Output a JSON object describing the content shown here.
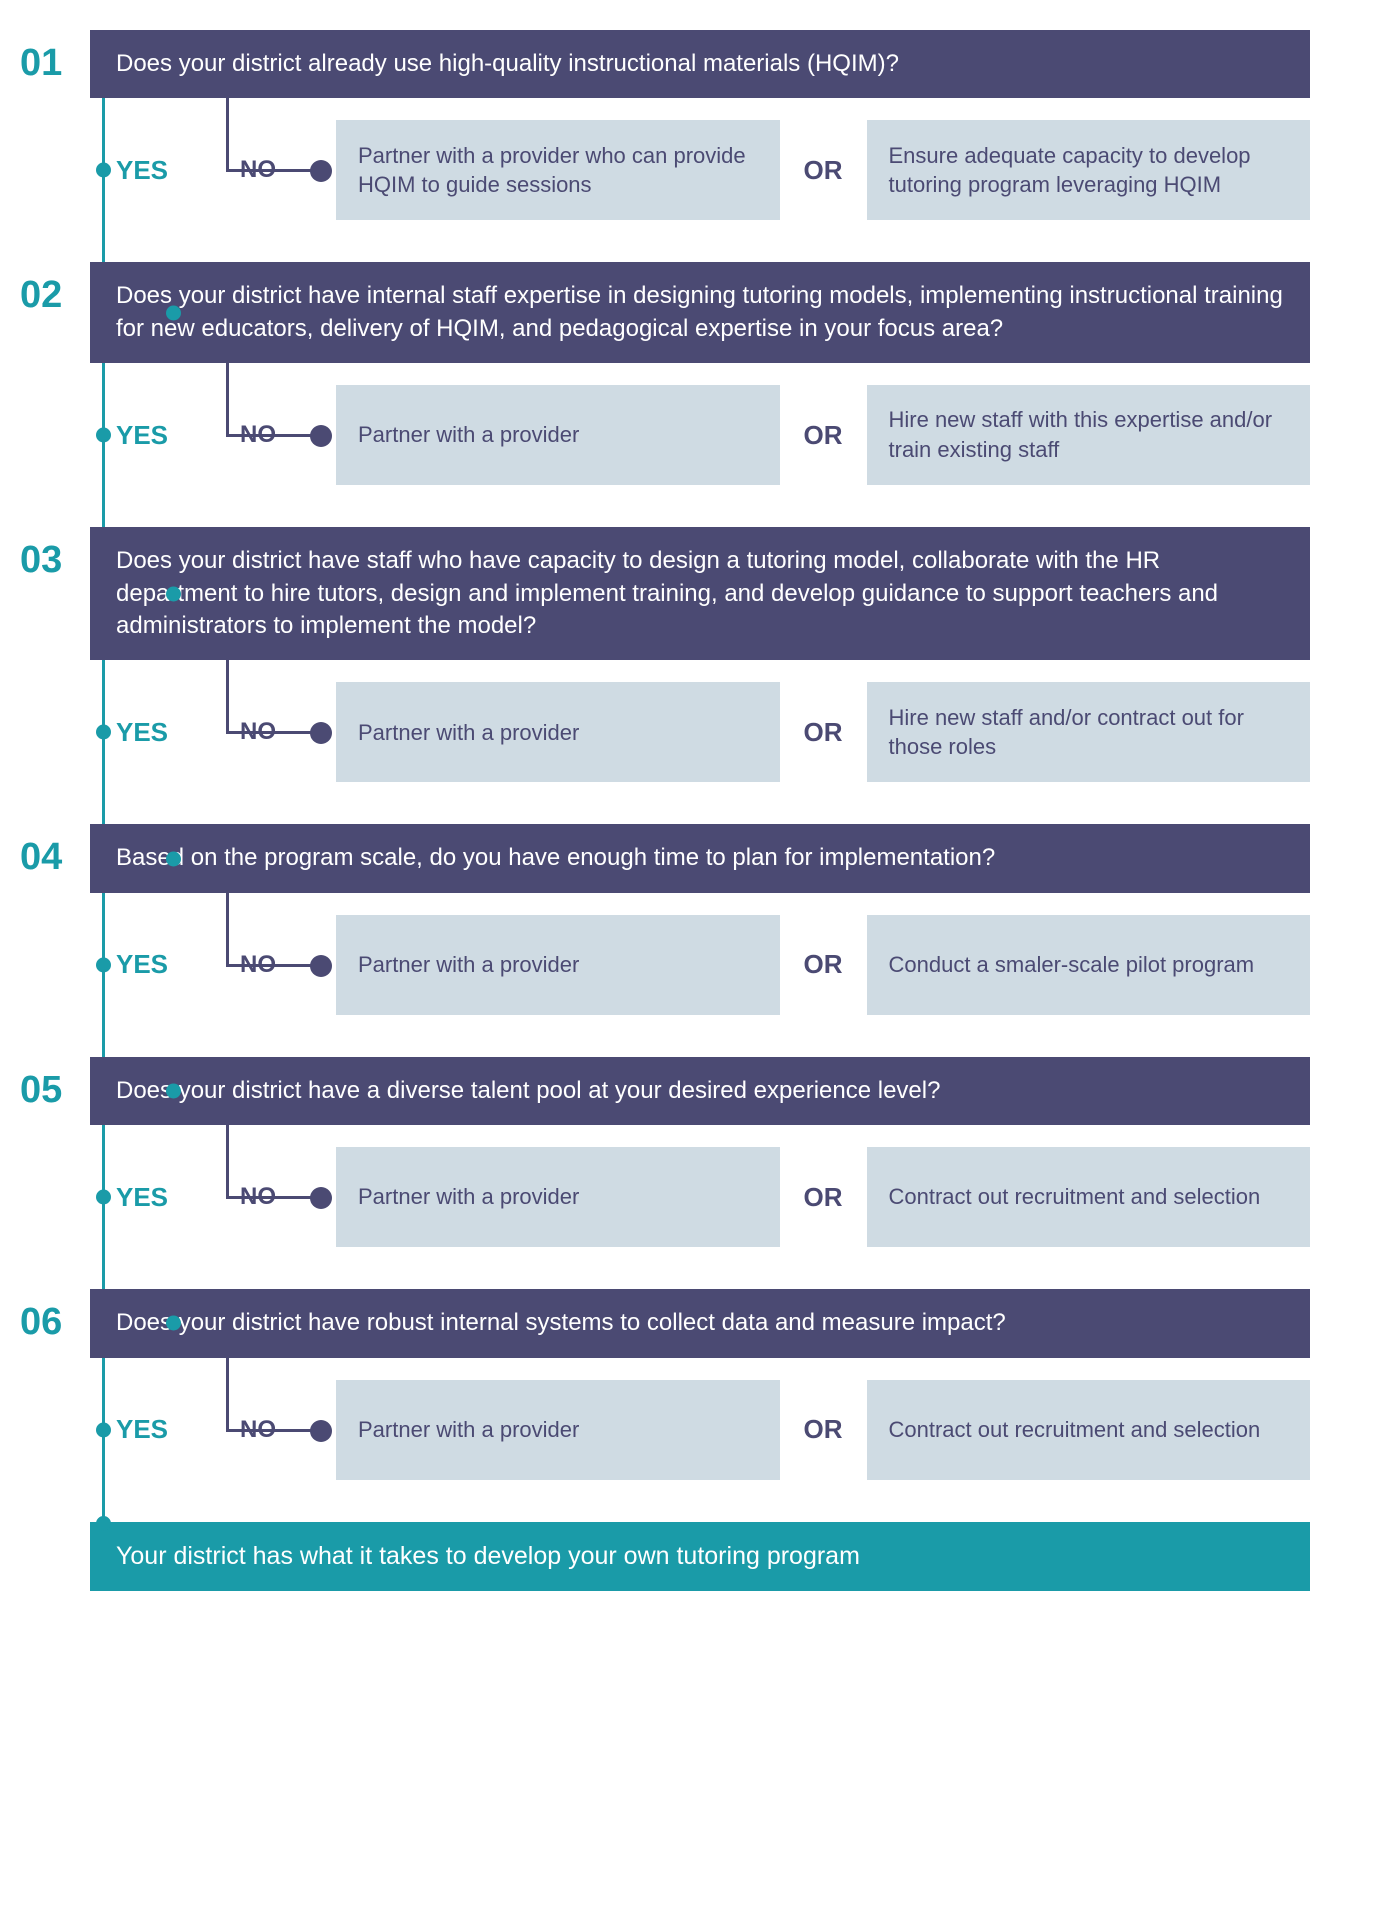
{
  "colors": {
    "dark_purple": "#4b4a73",
    "teal": "#1a9ba8",
    "light_blue": "#cfdbe3",
    "white": "#ffffff"
  },
  "typography": {
    "number_fontsize": 38,
    "question_fontsize": 24,
    "label_fontsize": 26,
    "option_fontsize": 22
  },
  "labels": {
    "yes": "YES",
    "no": "NO",
    "or": "OR"
  },
  "steps": [
    {
      "num": "01",
      "question": "Does your district already use high-quality instructional materials (HQIM)?",
      "option_a": "Partner with a provider who can provide HQIM to guide sessions",
      "option_b": "Ensure adequate capacity to develop tutoring program leveraging HQIM"
    },
    {
      "num": "02",
      "question": "Does your district have internal staff expertise in designing tutoring models, implementing instructional training for new educators, delivery of HQIM, and  pedagogical expertise in your focus area?",
      "option_a": "Partner with a provider",
      "option_b": "Hire new staff with this expertise and/or train existing staff"
    },
    {
      "num": "03",
      "question": "Does your district have staff who have capacity to design a tutoring model, collaborate with the HR department to hire tutors, design and implement training, and develop guidance to support teachers and administrators to implement the model?",
      "option_a": "Partner with a provider",
      "option_b": "Hire new staff and/or contract out for those roles"
    },
    {
      "num": "04",
      "question": "Based on the program scale, do you have enough time to plan for implementation?",
      "option_a": "Partner with a provider",
      "option_b": "Conduct a smaler-scale pilot program"
    },
    {
      "num": "05",
      "question": "Does your district have a diverse talent pool at your desired experience level?",
      "option_a": "Partner with a provider",
      "option_b": "Contract out recruitment and selection"
    },
    {
      "num": "06",
      "question": "Does your district have robust internal systems to collect data and measure impact?",
      "option_a": "Partner with a provider",
      "option_b": "Contract out recruitment and selection"
    }
  ],
  "final": "Your district has what it takes to develop your own tutoring program"
}
